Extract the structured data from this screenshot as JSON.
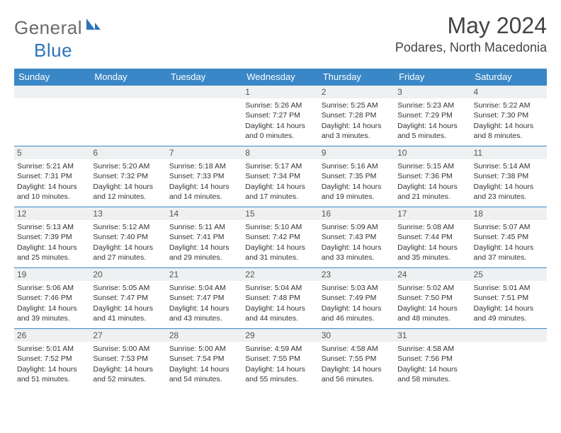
{
  "brand": {
    "part1": "General",
    "part2": "Blue"
  },
  "title": "May 2024",
  "location": "Podares, North Macedonia",
  "colors": {
    "header_bg": "#3a87c7",
    "header_text": "#ffffff",
    "border": "#3a87c7",
    "daynum_bg": "#eef0f1",
    "brand_gray": "#6a6a6a",
    "brand_blue": "#2d74b8"
  },
  "weekdays": [
    "Sunday",
    "Monday",
    "Tuesday",
    "Wednesday",
    "Thursday",
    "Friday",
    "Saturday"
  ],
  "weeks": [
    [
      null,
      null,
      null,
      {
        "n": "1",
        "sr": "5:26 AM",
        "ss": "7:27 PM",
        "dh": "14",
        "dm": "0"
      },
      {
        "n": "2",
        "sr": "5:25 AM",
        "ss": "7:28 PM",
        "dh": "14",
        "dm": "3"
      },
      {
        "n": "3",
        "sr": "5:23 AM",
        "ss": "7:29 PM",
        "dh": "14",
        "dm": "5"
      },
      {
        "n": "4",
        "sr": "5:22 AM",
        "ss": "7:30 PM",
        "dh": "14",
        "dm": "8"
      }
    ],
    [
      {
        "n": "5",
        "sr": "5:21 AM",
        "ss": "7:31 PM",
        "dh": "14",
        "dm": "10"
      },
      {
        "n": "6",
        "sr": "5:20 AM",
        "ss": "7:32 PM",
        "dh": "14",
        "dm": "12"
      },
      {
        "n": "7",
        "sr": "5:18 AM",
        "ss": "7:33 PM",
        "dh": "14",
        "dm": "14"
      },
      {
        "n": "8",
        "sr": "5:17 AM",
        "ss": "7:34 PM",
        "dh": "14",
        "dm": "17"
      },
      {
        "n": "9",
        "sr": "5:16 AM",
        "ss": "7:35 PM",
        "dh": "14",
        "dm": "19"
      },
      {
        "n": "10",
        "sr": "5:15 AM",
        "ss": "7:36 PM",
        "dh": "14",
        "dm": "21"
      },
      {
        "n": "11",
        "sr": "5:14 AM",
        "ss": "7:38 PM",
        "dh": "14",
        "dm": "23"
      }
    ],
    [
      {
        "n": "12",
        "sr": "5:13 AM",
        "ss": "7:39 PM",
        "dh": "14",
        "dm": "25"
      },
      {
        "n": "13",
        "sr": "5:12 AM",
        "ss": "7:40 PM",
        "dh": "14",
        "dm": "27"
      },
      {
        "n": "14",
        "sr": "5:11 AM",
        "ss": "7:41 PM",
        "dh": "14",
        "dm": "29"
      },
      {
        "n": "15",
        "sr": "5:10 AM",
        "ss": "7:42 PM",
        "dh": "14",
        "dm": "31"
      },
      {
        "n": "16",
        "sr": "5:09 AM",
        "ss": "7:43 PM",
        "dh": "14",
        "dm": "33"
      },
      {
        "n": "17",
        "sr": "5:08 AM",
        "ss": "7:44 PM",
        "dh": "14",
        "dm": "35"
      },
      {
        "n": "18",
        "sr": "5:07 AM",
        "ss": "7:45 PM",
        "dh": "14",
        "dm": "37"
      }
    ],
    [
      {
        "n": "19",
        "sr": "5:06 AM",
        "ss": "7:46 PM",
        "dh": "14",
        "dm": "39"
      },
      {
        "n": "20",
        "sr": "5:05 AM",
        "ss": "7:47 PM",
        "dh": "14",
        "dm": "41"
      },
      {
        "n": "21",
        "sr": "5:04 AM",
        "ss": "7:47 PM",
        "dh": "14",
        "dm": "43"
      },
      {
        "n": "22",
        "sr": "5:04 AM",
        "ss": "7:48 PM",
        "dh": "14",
        "dm": "44"
      },
      {
        "n": "23",
        "sr": "5:03 AM",
        "ss": "7:49 PM",
        "dh": "14",
        "dm": "46"
      },
      {
        "n": "24",
        "sr": "5:02 AM",
        "ss": "7:50 PM",
        "dh": "14",
        "dm": "48"
      },
      {
        "n": "25",
        "sr": "5:01 AM",
        "ss": "7:51 PM",
        "dh": "14",
        "dm": "49"
      }
    ],
    [
      {
        "n": "26",
        "sr": "5:01 AM",
        "ss": "7:52 PM",
        "dh": "14",
        "dm": "51"
      },
      {
        "n": "27",
        "sr": "5:00 AM",
        "ss": "7:53 PM",
        "dh": "14",
        "dm": "52"
      },
      {
        "n": "28",
        "sr": "5:00 AM",
        "ss": "7:54 PM",
        "dh": "14",
        "dm": "54"
      },
      {
        "n": "29",
        "sr": "4:59 AM",
        "ss": "7:55 PM",
        "dh": "14",
        "dm": "55"
      },
      {
        "n": "30",
        "sr": "4:58 AM",
        "ss": "7:55 PM",
        "dh": "14",
        "dm": "56"
      },
      {
        "n": "31",
        "sr": "4:58 AM",
        "ss": "7:56 PM",
        "dh": "14",
        "dm": "58"
      },
      null
    ]
  ],
  "labels": {
    "sunrise": "Sunrise:",
    "sunset": "Sunset:",
    "daylight": "Daylight:",
    "hours": "hours",
    "and": "and",
    "minutes": "minutes."
  }
}
